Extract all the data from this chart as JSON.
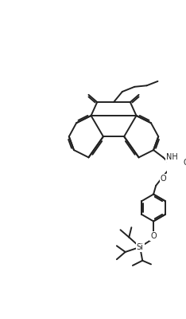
{
  "bg": "#ffffff",
  "lc": "#222222",
  "lw": 1.4,
  "fs": 7.0,
  "figsize": [
    2.34,
    4.0
  ],
  "dpi": 100
}
